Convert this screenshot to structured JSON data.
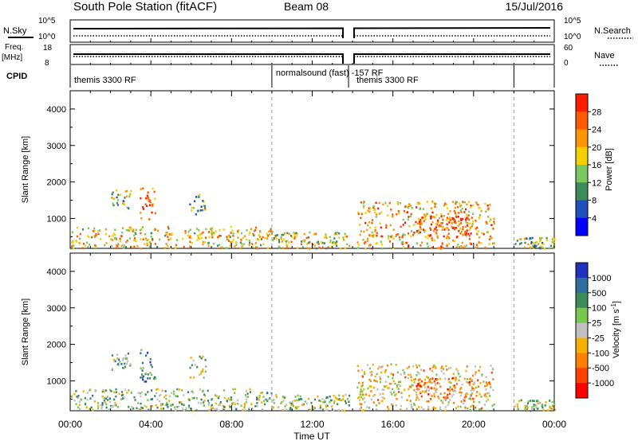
{
  "header": {
    "station": "South Pole Station (fitACF)",
    "beam": "Beam 08",
    "date": "15/Jul/2016"
  },
  "params": {
    "nsky_label": "N.Sky",
    "nsearch_label": "N.Search",
    "freq_label": "Freq.",
    "freq_unit": "[MHz]",
    "nave_label": "Nave",
    "cpid_label": "CPID",
    "left_ticks_top": [
      "10^5",
      "10^0"
    ],
    "right_ticks_top": [
      "10^5",
      "10^0"
    ],
    "left_ticks_freq": [
      "18",
      "8"
    ],
    "right_ticks_nave": [
      "60",
      "0"
    ]
  },
  "cpid_segments": [
    {
      "label": "themis 3300 RF",
      "start_h": 0.0,
      "end_h": 10.0
    },
    {
      "label": "normalsound (fast) -157 RF",
      "start_h": 10.0,
      "end_h": 13.8
    },
    {
      "label": "themis 3300 RF",
      "start_h": 14.0,
      "end_h": 22.0
    }
  ],
  "x_axis": {
    "label": "Time UT",
    "ticks": [
      "00:00",
      "04:00",
      "08:00",
      "12:00",
      "16:00",
      "20:00",
      "00:00"
    ],
    "range_h": [
      0,
      24
    ],
    "data_gap_h": [
      13.8,
      14.1
    ],
    "dashed_lines_h": [
      10.0,
      22.0
    ]
  },
  "panels": [
    {
      "id": "power",
      "ylabel": "Slant Range [km]",
      "yticks": [
        "1000",
        "2000",
        "3000",
        "4000"
      ],
      "ylim": [
        180,
        4500
      ],
      "colorbar_label": "Power [dB]",
      "colorbar_ticks": [
        "4",
        "8",
        "12",
        "16",
        "20",
        "24",
        "28"
      ],
      "colors": [
        "#0000ff",
        "#2050c0",
        "#3d8a5a",
        "#7cc860",
        "#f5d000",
        "#ff9500",
        "#ff5a00",
        "#ff1d00"
      ]
    },
    {
      "id": "velocity",
      "ylabel": "Slant Range [km]",
      "yticks": [
        "1000",
        "2000",
        "3000",
        "4000"
      ],
      "ylim": [
        180,
        4500
      ],
      "colorbar_label": "Velocity [m s^-1]",
      "colorbar_ticks": [
        "1000",
        "500",
        "100",
        "25",
        "-25",
        "-100",
        "-500",
        "-1000"
      ],
      "colors": [
        "#2030c0",
        "#2f6fa0",
        "#3d8a5a",
        "#78c850",
        "#c0c0c0",
        "#f5b000",
        "#ff8000",
        "#ff4000",
        "#ff0000"
      ]
    }
  ],
  "chart_data": [
    {
      "type": "heatmap",
      "title": "Power",
      "xlabel": "Time UT",
      "ylabel": "Slant Range [km]",
      "x_range_h": [
        0,
        24
      ],
      "y_range_km": [
        180,
        4500
      ],
      "colorbar": {
        "label": "Power [dB]",
        "range": [
          0,
          30
        ]
      },
      "echo_regions": [
        {
          "t0": 0.0,
          "t1": 10.0,
          "r0": 200,
          "r1": 800,
          "mean_db": 18
        },
        {
          "t0": 2.0,
          "t1": 3.0,
          "r0": 1300,
          "r1": 1800,
          "mean_db": 14
        },
        {
          "t0": 3.4,
          "t1": 4.2,
          "r0": 1000,
          "r1": 1900,
          "mean_db": 24
        },
        {
          "t0": 5.9,
          "t1": 6.7,
          "r0": 1100,
          "r1": 1700,
          "mean_db": 12
        },
        {
          "t0": 10.0,
          "t1": 13.8,
          "r0": 200,
          "r1": 650,
          "mean_db": 16
        },
        {
          "t0": 14.2,
          "t1": 21.0,
          "r0": 200,
          "r1": 1500,
          "mean_db": 20
        },
        {
          "t0": 17.0,
          "t1": 20.0,
          "r0": 500,
          "r1": 1100,
          "mean_db": 26
        },
        {
          "t0": 22.0,
          "t1": 24.0,
          "r0": 200,
          "r1": 500,
          "mean_db": 14
        }
      ]
    },
    {
      "type": "heatmap",
      "title": "Velocity",
      "xlabel": "Time UT",
      "ylabel": "Slant Range [km]",
      "x_range_h": [
        0,
        24
      ],
      "y_range_km": [
        180,
        4500
      ],
      "colorbar": {
        "label": "Velocity [m s^-1]",
        "range": [
          -1000,
          1000
        ]
      },
      "echo_regions": [
        {
          "t0": 0.0,
          "t1": 10.0,
          "r0": 200,
          "r1": 800,
          "mean_vel": 150
        },
        {
          "t0": 2.0,
          "t1": 3.0,
          "r0": 1300,
          "r1": 1800,
          "mean_vel": 300
        },
        {
          "t0": 3.4,
          "t1": 4.2,
          "r0": 1000,
          "r1": 1900,
          "mean_vel": 600
        },
        {
          "t0": 5.9,
          "t1": 6.7,
          "r0": 1100,
          "r1": 1700,
          "mean_vel": 80
        },
        {
          "t0": 10.0,
          "t1": 13.8,
          "r0": 200,
          "r1": 650,
          "mean_vel": 120
        },
        {
          "t0": 14.2,
          "t1": 21.0,
          "r0": 200,
          "r1": 1500,
          "mean_vel": -150
        },
        {
          "t0": 17.0,
          "t1": 20.0,
          "r0": 500,
          "r1": 1100,
          "mean_vel": -400
        },
        {
          "t0": 22.0,
          "t1": 24.0,
          "r0": 200,
          "r1": 500,
          "mean_vel": 50
        }
      ]
    }
  ]
}
